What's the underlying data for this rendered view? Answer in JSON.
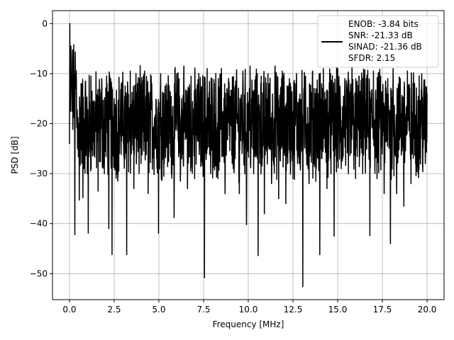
{
  "chart_data": {
    "type": "line",
    "xlabel": "Frequency [MHz]",
    "ylabel": "PSD [dB]",
    "xlim": [
      -0.95,
      20.95
    ],
    "ylim": [
      -55.2,
      2.6
    ],
    "xticks": [
      0.0,
      2.5,
      5.0,
      7.5,
      10.0,
      12.5,
      15.0,
      17.5,
      20.0
    ],
    "xtick_labels": [
      "0.0",
      "2.5",
      "5.0",
      "7.5",
      "10.0",
      "12.5",
      "15.0",
      "17.5",
      "20.0"
    ],
    "yticks": [
      0,
      -10,
      -20,
      -30,
      -40,
      -50
    ],
    "ytick_labels": [
      "0",
      "−10",
      "−20",
      "−30",
      "−40",
      "−50"
    ],
    "grid": true,
    "legend_position": "upper-right",
    "legend_entries": [
      "ENOB: -3.84 bits",
      "SNR: -21.33 dB",
      "SINAD: -21.36 dB",
      "SFDR: 2.15"
    ],
    "series": [
      {
        "color": "#000000",
        "description_note_free_points": [
          [
            0.0,
            -24.0
          ],
          [
            0.02,
            0.0
          ],
          [
            0.05,
            -8.0
          ],
          [
            0.08,
            -4.5
          ],
          [
            0.12,
            -12.0
          ],
          [
            0.16,
            -7.0
          ],
          [
            0.2,
            -15.0
          ],
          [
            0.25,
            -10.5
          ],
          [
            0.3,
            -42.2
          ],
          [
            0.35,
            -13.0
          ],
          [
            0.45,
            -25.0
          ],
          [
            0.55,
            -35.3
          ],
          [
            0.65,
            -12.0
          ],
          [
            0.75,
            -34.8
          ],
          [
            0.9,
            -11.5
          ],
          [
            1.0,
            -30.0
          ],
          [
            1.05,
            -41.9
          ],
          [
            1.2,
            -10.5
          ],
          [
            1.4,
            -25.0
          ],
          [
            1.6,
            -33.5
          ],
          [
            1.8,
            -11.0
          ],
          [
            1.95,
            -30.0
          ],
          [
            2.1,
            -12.0
          ],
          [
            2.2,
            -41.0
          ],
          [
            2.3,
            -11.0
          ],
          [
            2.38,
            -46.2
          ],
          [
            2.5,
            -15.0
          ],
          [
            2.7,
            -31.5
          ],
          [
            2.9,
            -12.0
          ],
          [
            3.1,
            -27.0
          ],
          [
            3.2,
            -46.2
          ],
          [
            3.4,
            -9.5
          ],
          [
            3.6,
            -33.0
          ],
          [
            3.8,
            -12.0
          ],
          [
            4.0,
            -28.0
          ],
          [
            4.2,
            -9.5
          ],
          [
            4.4,
            -34.0
          ],
          [
            4.6,
            -12.0
          ],
          [
            4.8,
            -25.0
          ],
          [
            4.98,
            -41.9
          ],
          [
            5.1,
            -10.0
          ],
          [
            5.3,
            -28.0
          ],
          [
            5.5,
            -12.5
          ],
          [
            5.7,
            -30.0
          ],
          [
            5.85,
            -38.8
          ],
          [
            6.0,
            -10.0
          ],
          [
            6.2,
            -31.5
          ],
          [
            6.4,
            -8.5
          ],
          [
            6.6,
            -33.0
          ],
          [
            6.8,
            -10.5
          ],
          [
            7.0,
            -31.0
          ],
          [
            7.2,
            -12.0
          ],
          [
            7.4,
            -27.0
          ],
          [
            7.55,
            -50.8
          ],
          [
            7.7,
            -9.0
          ],
          [
            7.9,
            -30.0
          ],
          [
            8.1,
            -12.0
          ],
          [
            8.3,
            -31.0
          ],
          [
            8.5,
            -9.0
          ],
          [
            8.7,
            -34.0
          ],
          [
            8.9,
            -11.0
          ],
          [
            9.1,
            -28.0
          ],
          [
            9.3,
            -11.5
          ],
          [
            9.5,
            -34.0
          ],
          [
            9.7,
            -9.5
          ],
          [
            9.9,
            -40.2
          ],
          [
            10.1,
            -8.5
          ],
          [
            10.3,
            -30.0
          ],
          [
            10.5,
            -10.0
          ],
          [
            10.55,
            -46.4
          ],
          [
            10.7,
            -12.0
          ],
          [
            10.9,
            -38.0
          ],
          [
            11.1,
            -10.0
          ],
          [
            11.3,
            -32.0
          ],
          [
            11.5,
            -8.5
          ],
          [
            11.7,
            -35.0
          ],
          [
            11.9,
            -9.5
          ],
          [
            12.1,
            -36.0
          ],
          [
            12.3,
            -11.0
          ],
          [
            12.5,
            -31.0
          ],
          [
            12.7,
            -10.0
          ],
          [
            12.9,
            -28.0
          ],
          [
            13.05,
            -52.6
          ],
          [
            13.2,
            -10.5
          ],
          [
            13.4,
            -32.0
          ],
          [
            13.6,
            -9.5
          ],
          [
            13.8,
            -29.0
          ],
          [
            14.0,
            -46.2
          ],
          [
            14.2,
            -9.0
          ],
          [
            14.4,
            -33.0
          ],
          [
            14.6,
            -10.0
          ],
          [
            14.8,
            -42.5
          ],
          [
            15.0,
            -9.0
          ],
          [
            15.2,
            -29.0
          ],
          [
            15.4,
            -11.0
          ],
          [
            15.6,
            -30.0
          ],
          [
            15.8,
            -8.5
          ],
          [
            16.0,
            -31.0
          ],
          [
            16.2,
            -10.5
          ],
          [
            16.4,
            -30.0
          ],
          [
            16.6,
            -11.0
          ],
          [
            16.8,
            -42.4
          ],
          [
            17.0,
            -9.5
          ],
          [
            17.2,
            -31.0
          ],
          [
            17.4,
            -10.5
          ],
          [
            17.6,
            -34.0
          ],
          [
            17.8,
            -11.0
          ],
          [
            17.95,
            -44.0
          ],
          [
            18.1,
            -9.0
          ],
          [
            18.3,
            -34.0
          ],
          [
            18.5,
            -11.0
          ],
          [
            18.7,
            -36.5
          ],
          [
            18.9,
            -9.5
          ],
          [
            19.1,
            -32.0
          ],
          [
            19.3,
            -12.0
          ],
          [
            19.5,
            -30.0
          ],
          [
            19.7,
            -10.0
          ],
          [
            19.9,
            -28.0
          ],
          [
            20.0,
            -14.0
          ]
        ]
      }
    ]
  }
}
